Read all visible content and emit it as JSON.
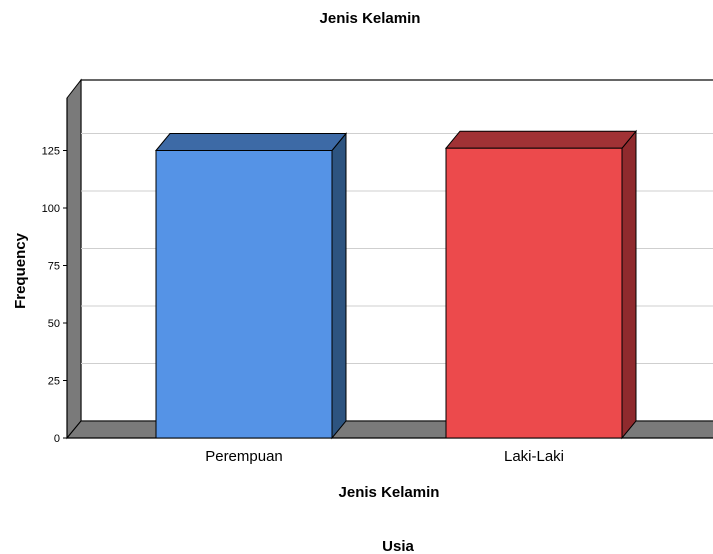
{
  "chart_data": {
    "type": "bar",
    "title": "Jenis Kelamin",
    "xlabel": "Jenis Kelamin",
    "ylabel": "Frequency",
    "categories": [
      "Perempuan",
      "Laki-Laki"
    ],
    "values": [
      125,
      126
    ],
    "ylim": [
      0,
      150
    ],
    "yticks": [
      0,
      25,
      50,
      75,
      100,
      125
    ],
    "grid": true,
    "legend": "none",
    "colors": {
      "bars": [
        "#5593e6",
        "#ec4a4c"
      ],
      "bars_side": [
        "#2d5480",
        "#8f2a2d"
      ],
      "bars_top": [
        "#3d6aa6",
        "#a13235"
      ],
      "floor": "#7a7a7a",
      "wall": "#ffffff",
      "grid": "#cfcfcf"
    }
  },
  "footer": {
    "next_title": "Usia"
  }
}
